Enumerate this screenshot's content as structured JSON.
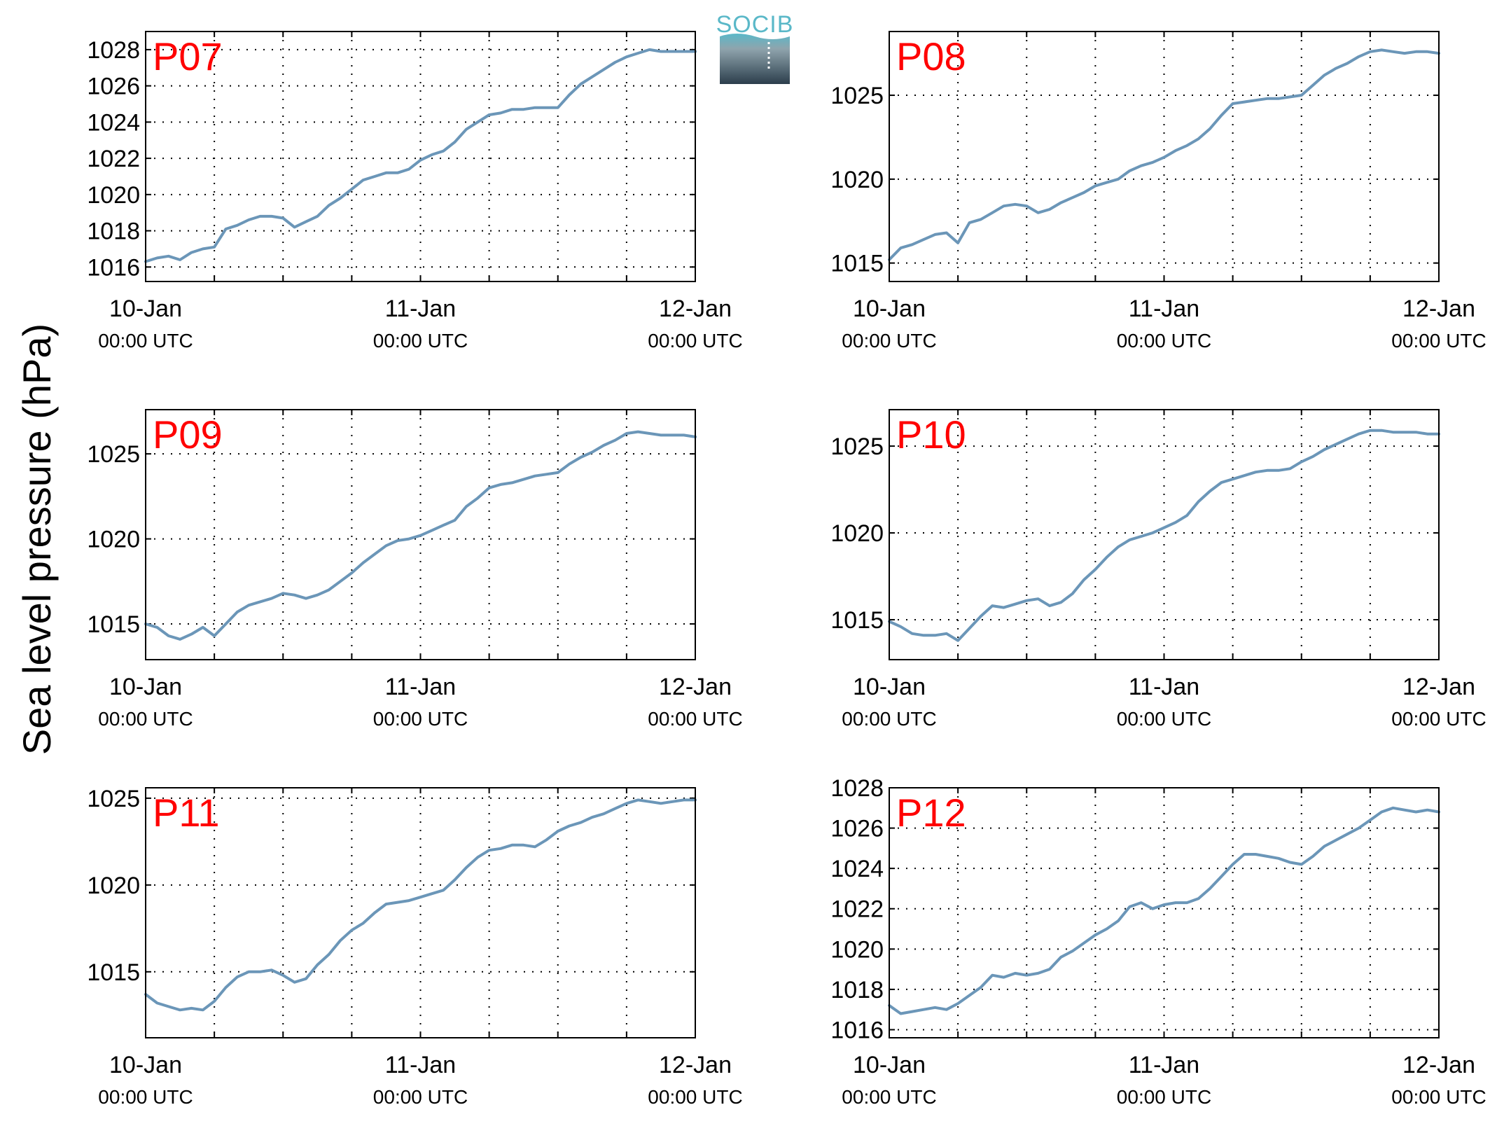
{
  "figure": {
    "ylabel": "Sea level pressure (hPa)",
    "logo_text": "SOCIB",
    "colors": {
      "line": "#6b96b8",
      "station_label": "#ff0000",
      "axis": "#000000",
      "grid": "#000000",
      "logo_top": "#5ab8c8",
      "logo_bottom": "#2c3e4c"
    }
  },
  "chart_data": [
    {
      "type": "line",
      "station": "P07",
      "xticks": [
        {
          "date": "10-Jan",
          "time": "00:00 UTC"
        },
        {
          "date": "11-Jan",
          "time": "00:00 UTC"
        },
        {
          "date": "12-Jan",
          "time": "00:00 UTC"
        }
      ],
      "xlim": [
        0,
        48
      ],
      "ylim": [
        1015.2,
        1029.0
      ],
      "yticks": [
        1016,
        1018,
        1020,
        1022,
        1024,
        1026,
        1028
      ],
      "grid": true,
      "x": [
        0,
        1,
        2,
        3,
        4,
        5,
        6,
        7,
        8,
        9,
        10,
        11,
        12,
        13,
        14,
        15,
        16,
        17,
        18,
        19,
        20,
        21,
        22,
        23,
        24,
        25,
        26,
        27,
        28,
        29,
        30,
        31,
        32,
        33,
        34,
        35,
        36,
        37,
        38,
        39,
        40,
        41,
        42,
        43,
        44,
        45,
        46,
        47,
        48
      ],
      "y": [
        1016.3,
        1016.5,
        1016.6,
        1016.4,
        1016.8,
        1017.0,
        1017.1,
        1018.1,
        1018.3,
        1018.6,
        1018.8,
        1018.8,
        1018.7,
        1018.2,
        1018.5,
        1018.8,
        1019.4,
        1019.8,
        1020.3,
        1020.8,
        1021.0,
        1021.2,
        1021.2,
        1021.4,
        1021.9,
        1022.2,
        1022.4,
        1022.9,
        1023.6,
        1024.0,
        1024.4,
        1024.5,
        1024.7,
        1024.7,
        1024.8,
        1024.8,
        1024.8,
        1025.5,
        1026.1,
        1026.5,
        1026.9,
        1027.3,
        1027.6,
        1027.8,
        1028.0,
        1027.9,
        1027.9,
        1027.9,
        1027.9
      ]
    },
    {
      "type": "line",
      "station": "P08",
      "xticks": [
        {
          "date": "10-Jan",
          "time": "00:00 UTC"
        },
        {
          "date": "11-Jan",
          "time": "00:00 UTC"
        },
        {
          "date": "12-Jan",
          "time": "00:00 UTC"
        }
      ],
      "xlim": [
        0,
        48
      ],
      "ylim": [
        1013.9,
        1028.8
      ],
      "yticks": [
        1015,
        1020,
        1025
      ],
      "grid": true,
      "x": [
        0,
        1,
        2,
        3,
        4,
        5,
        6,
        7,
        8,
        9,
        10,
        11,
        12,
        13,
        14,
        15,
        16,
        17,
        18,
        19,
        20,
        21,
        22,
        23,
        24,
        25,
        26,
        27,
        28,
        29,
        30,
        31,
        32,
        33,
        34,
        35,
        36,
        37,
        38,
        39,
        40,
        41,
        42,
        43,
        44,
        45,
        46,
        47,
        48
      ],
      "y": [
        1015.2,
        1015.9,
        1016.1,
        1016.4,
        1016.7,
        1016.8,
        1016.2,
        1017.4,
        1017.6,
        1018.0,
        1018.4,
        1018.5,
        1018.4,
        1018.0,
        1018.2,
        1018.6,
        1018.9,
        1019.2,
        1019.6,
        1019.8,
        1020.0,
        1020.5,
        1020.8,
        1021.0,
        1021.3,
        1021.7,
        1022.0,
        1022.4,
        1023.0,
        1023.8,
        1024.5,
        1024.6,
        1024.7,
        1024.8,
        1024.8,
        1024.9,
        1025.0,
        1025.6,
        1026.2,
        1026.6,
        1026.9,
        1027.3,
        1027.6,
        1027.7,
        1027.6,
        1027.5,
        1027.6,
        1027.6,
        1027.5
      ]
    },
    {
      "type": "line",
      "station": "P09",
      "xticks": [
        {
          "date": "10-Jan",
          "time": "00:00 UTC"
        },
        {
          "date": "11-Jan",
          "time": "00:00 UTC"
        },
        {
          "date": "12-Jan",
          "time": "00:00 UTC"
        }
      ],
      "xlim": [
        0,
        48
      ],
      "ylim": [
        1012.9,
        1027.6
      ],
      "yticks": [
        1015,
        1020,
        1025
      ],
      "grid": true,
      "x": [
        0,
        1,
        2,
        3,
        4,
        5,
        6,
        7,
        8,
        9,
        10,
        11,
        12,
        13,
        14,
        15,
        16,
        17,
        18,
        19,
        20,
        21,
        22,
        23,
        24,
        25,
        26,
        27,
        28,
        29,
        30,
        31,
        32,
        33,
        34,
        35,
        36,
        37,
        38,
        39,
        40,
        41,
        42,
        43,
        44,
        45,
        46,
        47,
        48
      ],
      "y": [
        1015.0,
        1014.8,
        1014.3,
        1014.1,
        1014.4,
        1014.8,
        1014.3,
        1015.0,
        1015.7,
        1016.1,
        1016.3,
        1016.5,
        1016.8,
        1016.7,
        1016.5,
        1016.7,
        1017.0,
        1017.5,
        1018.0,
        1018.6,
        1019.1,
        1019.6,
        1019.9,
        1020.0,
        1020.2,
        1020.5,
        1020.8,
        1021.1,
        1021.9,
        1022.4,
        1023.0,
        1023.2,
        1023.3,
        1023.5,
        1023.7,
        1023.8,
        1023.9,
        1024.4,
        1024.8,
        1025.1,
        1025.5,
        1025.8,
        1026.2,
        1026.3,
        1026.2,
        1026.1,
        1026.1,
        1026.1,
        1026.0
      ]
    },
    {
      "type": "line",
      "station": "P10",
      "xticks": [
        {
          "date": "10-Jan",
          "time": "00:00 UTC"
        },
        {
          "date": "11-Jan",
          "time": "00:00 UTC"
        },
        {
          "date": "12-Jan",
          "time": "00:00 UTC"
        }
      ],
      "xlim": [
        0,
        48
      ],
      "ylim": [
        1012.7,
        1027.1
      ],
      "yticks": [
        1015,
        1020,
        1025
      ],
      "grid": true,
      "x": [
        0,
        1,
        2,
        3,
        4,
        5,
        6,
        7,
        8,
        9,
        10,
        11,
        12,
        13,
        14,
        15,
        16,
        17,
        18,
        19,
        20,
        21,
        22,
        23,
        24,
        25,
        26,
        27,
        28,
        29,
        30,
        31,
        32,
        33,
        34,
        35,
        36,
        37,
        38,
        39,
        40,
        41,
        42,
        43,
        44,
        45,
        46,
        47,
        48
      ],
      "y": [
        1014.9,
        1014.6,
        1014.2,
        1014.1,
        1014.1,
        1014.2,
        1013.8,
        1014.5,
        1015.2,
        1015.8,
        1015.7,
        1015.9,
        1016.1,
        1016.2,
        1015.8,
        1016.0,
        1016.5,
        1017.3,
        1017.9,
        1018.6,
        1019.2,
        1019.6,
        1019.8,
        1020.0,
        1020.3,
        1020.6,
        1021.0,
        1021.8,
        1022.4,
        1022.9,
        1023.1,
        1023.3,
        1023.5,
        1023.6,
        1023.6,
        1023.7,
        1024.1,
        1024.4,
        1024.8,
        1025.1,
        1025.4,
        1025.7,
        1025.9,
        1025.9,
        1025.8,
        1025.8,
        1025.8,
        1025.7,
        1025.7
      ]
    },
    {
      "type": "line",
      "station": "P11",
      "xticks": [
        {
          "date": "10-Jan",
          "time": "00:00 UTC"
        },
        {
          "date": "11-Jan",
          "time": "00:00 UTC"
        },
        {
          "date": "12-Jan",
          "time": "00:00 UTC"
        }
      ],
      "xlim": [
        0,
        48
      ],
      "ylim": [
        1011.2,
        1025.6
      ],
      "yticks": [
        1015,
        1020,
        1025
      ],
      "grid": true,
      "x": [
        0,
        1,
        2,
        3,
        4,
        5,
        6,
        7,
        8,
        9,
        10,
        11,
        12,
        13,
        14,
        15,
        16,
        17,
        18,
        19,
        20,
        21,
        22,
        23,
        24,
        25,
        26,
        27,
        28,
        29,
        30,
        31,
        32,
        33,
        34,
        35,
        36,
        37,
        38,
        39,
        40,
        41,
        42,
        43,
        44,
        45,
        46,
        47,
        48
      ],
      "y": [
        1013.7,
        1013.2,
        1013.0,
        1012.8,
        1012.9,
        1012.8,
        1013.3,
        1014.1,
        1014.7,
        1015.0,
        1015.0,
        1015.1,
        1014.8,
        1014.4,
        1014.6,
        1015.4,
        1016.0,
        1016.8,
        1017.4,
        1017.8,
        1018.4,
        1018.9,
        1019.0,
        1019.1,
        1019.3,
        1019.5,
        1019.7,
        1020.3,
        1021.0,
        1021.6,
        1022.0,
        1022.1,
        1022.3,
        1022.3,
        1022.2,
        1022.6,
        1023.1,
        1023.4,
        1023.6,
        1023.9,
        1024.1,
        1024.4,
        1024.7,
        1024.9,
        1024.8,
        1024.7,
        1024.8,
        1024.9,
        1024.9
      ]
    },
    {
      "type": "line",
      "station": "P12",
      "xticks": [
        {
          "date": "10-Jan",
          "time": "00:00 UTC"
        },
        {
          "date": "11-Jan",
          "time": "00:00 UTC"
        },
        {
          "date": "12-Jan",
          "time": "00:00 UTC"
        }
      ],
      "xlim": [
        0,
        48
      ],
      "ylim": [
        1015.6,
        1028.0
      ],
      "yticks": [
        1016,
        1018,
        1020,
        1022,
        1024,
        1026,
        1028
      ],
      "grid": true,
      "x": [
        0,
        1,
        2,
        3,
        4,
        5,
        6,
        7,
        8,
        9,
        10,
        11,
        12,
        13,
        14,
        15,
        16,
        17,
        18,
        19,
        20,
        21,
        22,
        23,
        24,
        25,
        26,
        27,
        28,
        29,
        30,
        31,
        32,
        33,
        34,
        35,
        36,
        37,
        38,
        39,
        40,
        41,
        42,
        43,
        44,
        45,
        46,
        47,
        48
      ],
      "y": [
        1017.2,
        1016.8,
        1016.9,
        1017.0,
        1017.1,
        1017.0,
        1017.3,
        1017.7,
        1018.1,
        1018.7,
        1018.6,
        1018.8,
        1018.7,
        1018.8,
        1019.0,
        1019.6,
        1019.9,
        1020.3,
        1020.7,
        1021.0,
        1021.4,
        1022.1,
        1022.3,
        1022.0,
        1022.2,
        1022.3,
        1022.3,
        1022.5,
        1023.0,
        1023.6,
        1024.2,
        1024.7,
        1024.7,
        1024.6,
        1024.5,
        1024.3,
        1024.2,
        1024.6,
        1025.1,
        1025.4,
        1025.7,
        1026.0,
        1026.4,
        1026.8,
        1027.0,
        1026.9,
        1026.8,
        1026.9,
        1026.8
      ]
    }
  ]
}
